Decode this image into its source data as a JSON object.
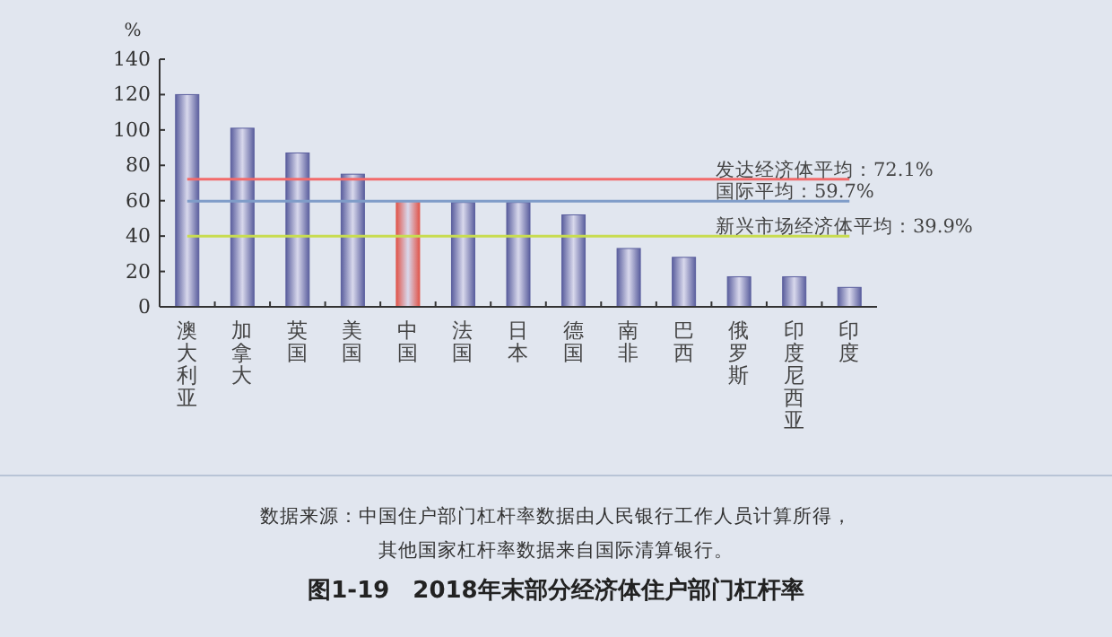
{
  "chart_data": {
    "type": "bar",
    "title": "图1-19　2018年末部分经济体住户部门杠杆率",
    "ylabel": "%",
    "categories": [
      "澳大利亚",
      "加拿大",
      "英国",
      "美国",
      "中国",
      "法国",
      "日本",
      "德国",
      "南非",
      "巴西",
      "俄罗斯",
      "印度尼西亚",
      "印度"
    ],
    "values": [
      120,
      101,
      87,
      75,
      60,
      59,
      59,
      52,
      33,
      28,
      17,
      17,
      11
    ],
    "colors": [
      "#5b5f9e",
      "#5b5f9e",
      "#5b5f9e",
      "#5b5f9e",
      "#e0564c",
      "#5b5f9e",
      "#5b5f9e",
      "#5b5f9e",
      "#5b5f9e",
      "#5b5f9e",
      "#5b5f9e",
      "#5b5f9e",
      "#5b5f9e"
    ],
    "ylim": [
      0,
      140
    ],
    "yticks": [
      0,
      20,
      40,
      60,
      80,
      100,
      120,
      140
    ],
    "ref_lines": [
      {
        "axis": "y",
        "value": 72.1,
        "label": "发达经济体平均：72.1%",
        "color": "#f26b6b"
      },
      {
        "axis": "y",
        "value": 59.7,
        "label": "国际平均：59.7%",
        "color": "#7f9cc8"
      },
      {
        "axis": "y",
        "value": 39.9,
        "label": "新兴市场经济体平均：39.9%",
        "color": "#c8dc50"
      }
    ],
    "annotations": [
      "数据来源：中国住户部门杠杆率数据由人民银行工作人员计算所得，",
      "其他国家杠杆率数据来自国际清算银行。"
    ],
    "grid": false
  }
}
